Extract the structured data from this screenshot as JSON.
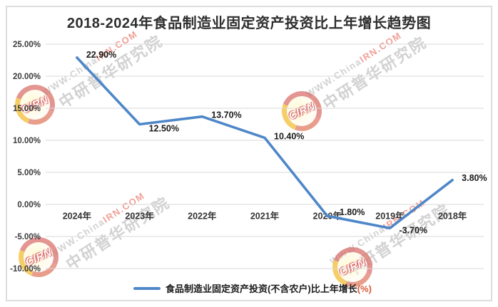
{
  "chart": {
    "title": "2018-2024年食品制造业固定资产投资比上年增长趋势图",
    "legend_label": "食品制造业固定资产投资(不含农户)比上年增长",
    "legend_suffix": "(%)"
  },
  "watermark": {
    "url_gray": "WWW.China",
    "url_red": "IRN.COM",
    "brand": "中研普华研究院",
    "logo_text": "CIRN"
  },
  "chart_data": {
    "type": "line",
    "title": "2018-2024年食品制造业固定资产投资比上年增长趋势图",
    "categories": [
      "2024年",
      "2023年",
      "2022年",
      "2021年",
      "2020年",
      "2019年",
      "2018年"
    ],
    "series": [
      {
        "name": "食品制造业固定资产投资(不含农户)比上年增长(%)",
        "values": [
          22.9,
          12.5,
          13.7,
          10.4,
          -1.8,
          -3.7,
          3.8
        ]
      }
    ],
    "value_labels": [
      "22.90%",
      "12.50%",
      "13.70%",
      "10.40%",
      "-1.80%",
      "-3.70%",
      "3.80%"
    ],
    "xlabel": "",
    "ylabel": "",
    "ylim": [
      -10,
      25
    ],
    "ytick_step": 5,
    "ytick_labels": [
      "25.00%",
      "20.00%",
      "15.00%",
      "10.00%",
      "5.00%",
      "0.00%",
      "-5.00%",
      "-10.00%"
    ],
    "grid": true,
    "legend_position": "bottom",
    "colors": {
      "line": "#4E87C8",
      "grid": "#DADADA",
      "axis_text": "#3B3B3B",
      "data_label": "#1A1A1A",
      "title_text": "#2E2E2E",
      "legend_suffix": "#D65A38",
      "border": "#DDDDDD",
      "watermark_gray": "#D2D2D2",
      "watermark_red": "#F0A097"
    }
  }
}
